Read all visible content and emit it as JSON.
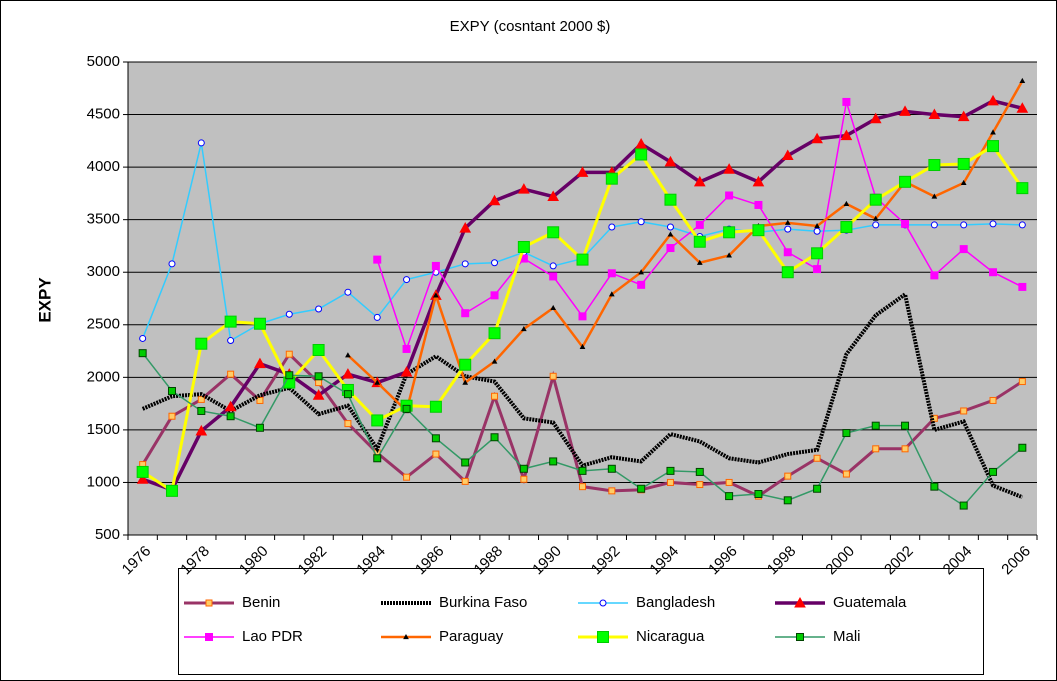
{
  "chart_data": {
    "type": "line",
    "title": "EXPY (cosntant 2000 $)",
    "y_label": "EXPY",
    "categories": [
      "1976",
      null,
      "1978",
      null,
      "1980",
      null,
      "1982",
      null,
      "1984",
      null,
      "1986",
      null,
      "1988",
      null,
      "1990",
      null,
      "1992",
      null,
      "1994",
      null,
      "1996",
      null,
      "1998",
      null,
      "2000",
      null,
      "2002",
      null,
      "2004",
      null,
      "2006"
    ],
    "ylim": [
      500,
      5000
    ],
    "yticks": [
      500,
      1000,
      1500,
      2000,
      2500,
      3000,
      3500,
      4000,
      4500,
      5000
    ],
    "grid": true,
    "legend": "bottom",
    "series": [
      {
        "name": "Benin",
        "color": "#993366",
        "values": [
          1170,
          1630,
          1790,
          2030,
          1780,
          2220,
          1950,
          1560,
          1280,
          1050,
          1270,
          1010,
          1820,
          1030,
          2010,
          960,
          920,
          930,
          1000,
          980,
          1000,
          870,
          1060,
          1230,
          1080,
          1320,
          1320,
          1610,
          1680,
          1780,
          1960
        ]
      },
      {
        "name": "Burkina Faso",
        "color": "#000000",
        "values": [
          1700,
          1820,
          1840,
          1680,
          1830,
          1900,
          1650,
          1730,
          1320,
          2030,
          2200,
          2010,
          1960,
          1610,
          1570,
          1160,
          1240,
          1200,
          1460,
          1390,
          1230,
          1190,
          1270,
          1310,
          2220,
          2590,
          2790,
          1500,
          1580,
          970,
          860
        ]
      },
      {
        "name": "Bangladesh",
        "color": "#33ccff",
        "values": [
          2370,
          3080,
          4230,
          2350,
          2510,
          2600,
          2650,
          2810,
          2570,
          2930,
          3000,
          3080,
          3090,
          3190,
          3060,
          3130,
          3430,
          3480,
          3430,
          3340,
          3410,
          3380,
          3410,
          3390,
          3400,
          3450,
          3450,
          3450,
          3450,
          3460,
          3450
        ]
      },
      {
        "name": "Guatemala",
        "color": "#660066",
        "values": [
          1030,
          930,
          1490,
          1720,
          2130,
          2030,
          1830,
          2030,
          1950,
          2050,
          2780,
          3420,
          3680,
          3790,
          3720,
          3950,
          3950,
          4220,
          4050,
          3860,
          3980,
          3860,
          4110,
          4270,
          4300,
          4460,
          4530,
          4500,
          4480,
          4630,
          4560
        ]
      },
      {
        "name": "Lao PDR",
        "color": "#ff00ff",
        "values": [
          null,
          null,
          null,
          null,
          null,
          null,
          null,
          null,
          3120,
          2270,
          3060,
          2610,
          2780,
          3130,
          2960,
          2580,
          2990,
          2880,
          3230,
          3450,
          3730,
          3640,
          3190,
          3030,
          4620,
          3710,
          3460,
          2970,
          3220,
          3000,
          2860
        ]
      },
      {
        "name": "Paraguay",
        "color": "#ff6600",
        "values": [
          null,
          null,
          null,
          null,
          null,
          null,
          null,
          2210,
          1950,
          1680,
          2780,
          1950,
          2150,
          2460,
          2660,
          2290,
          2790,
          3000,
          3360,
          3090,
          3160,
          3440,
          3470,
          3440,
          3650,
          3510,
          3860,
          3720,
          3850,
          4330,
          4820
        ]
      },
      {
        "name": "Nicaragua",
        "color": "#ffff00",
        "values": [
          1100,
          920,
          2320,
          2530,
          2510,
          1950,
          2260,
          1880,
          1590,
          1730,
          1720,
          2120,
          2420,
          3240,
          3380,
          3120,
          3890,
          4120,
          3690,
          3290,
          3380,
          3400,
          3000,
          3180,
          3430,
          3690,
          3860,
          4020,
          4030,
          4200,
          3800
        ]
      },
      {
        "name": "Mali",
        "color": "#339966",
        "values": [
          2230,
          1870,
          1680,
          1630,
          1520,
          2020,
          2010,
          1840,
          1230,
          1700,
          1420,
          1190,
          1430,
          1130,
          1200,
          1110,
          1130,
          940,
          1110,
          1100,
          870,
          890,
          830,
          940,
          1470,
          1540,
          1540,
          960,
          780,
          1100,
          1330
        ]
      }
    ]
  }
}
